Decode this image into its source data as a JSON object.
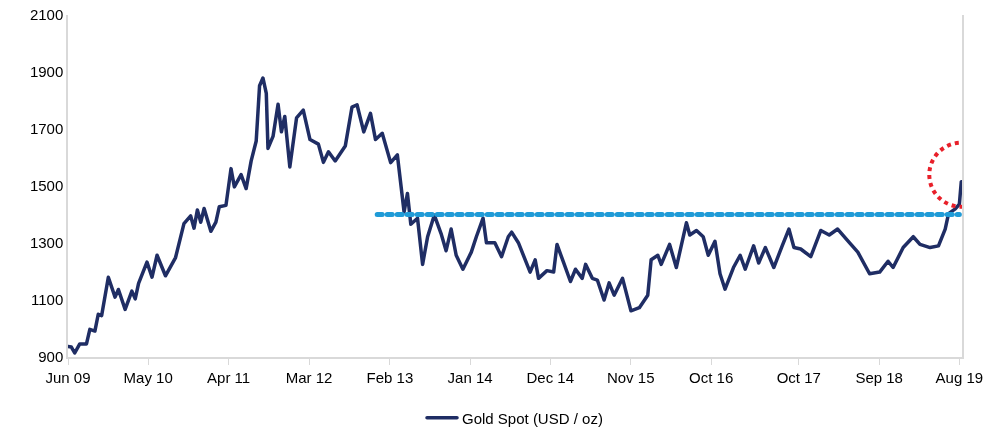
{
  "chart_data": {
    "type": "line",
    "legend": "bottom",
    "grid": false,
    "marker": "none",
    "xlim": [
      "2009-06-01",
      "2019-08-12"
    ],
    "ylim": [
      900,
      2100
    ],
    "xticks": [
      {
        "value": "2009-06-01",
        "label": "Jun 09"
      },
      {
        "value": "2010-05-01",
        "label": "May 10"
      },
      {
        "value": "2011-04-01",
        "label": "Apr 11"
      },
      {
        "value": "2012-03-01",
        "label": "Mar 12"
      },
      {
        "value": "2013-02-01",
        "label": "Feb 13"
      },
      {
        "value": "2014-01-01",
        "label": "Jan 14"
      },
      {
        "value": "2014-12-01",
        "label": "Dec 14"
      },
      {
        "value": "2015-11-01",
        "label": "Nov 15"
      },
      {
        "value": "2016-10-01",
        "label": "Oct 16"
      },
      {
        "value": "2017-10-01",
        "label": "Oct 17"
      },
      {
        "value": "2018-09-01",
        "label": "Sep 18"
      },
      {
        "value": "2019-08-01",
        "label": "Aug 19"
      }
    ],
    "yticks": [
      900,
      1100,
      1300,
      1500,
      1700,
      1900,
      2100
    ],
    "series": [
      {
        "name": "Gold Spot (USD / oz)",
        "color": "#1f2d64",
        "line_style": "solid",
        "x": [
          "2009-06-01",
          "2009-06-15",
          "2009-06-29",
          "2009-07-20",
          "2009-08-17",
          "2009-08-31",
          "2009-09-21",
          "2009-10-05",
          "2009-10-19",
          "2009-11-16",
          "2009-12-14",
          "2009-12-28",
          "2010-01-25",
          "2010-02-22",
          "2010-03-08",
          "2010-03-22",
          "2010-04-26",
          "2010-05-17",
          "2010-06-07",
          "2010-07-12",
          "2010-08-23",
          "2010-09-27",
          "2010-10-25",
          "2010-11-08",
          "2010-11-22",
          "2010-12-06",
          "2010-12-20",
          "2011-01-17",
          "2011-02-07",
          "2011-02-21",
          "2011-03-21",
          "2011-04-11",
          "2011-04-25",
          "2011-05-23",
          "2011-06-13",
          "2011-07-04",
          "2011-07-25",
          "2011-08-08",
          "2011-08-22",
          "2011-09-05",
          "2011-09-12",
          "2011-10-03",
          "2011-10-24",
          "2011-11-07",
          "2011-11-21",
          "2011-12-12",
          "2012-01-09",
          "2012-02-06",
          "2012-03-05",
          "2012-04-09",
          "2012-04-30",
          "2012-05-21",
          "2012-06-18",
          "2012-07-30",
          "2012-08-27",
          "2012-09-17",
          "2012-10-15",
          "2012-11-12",
          "2012-12-03",
          "2012-12-31",
          "2013-02-04",
          "2013-03-04",
          "2013-04-01",
          "2013-04-15",
          "2013-04-29",
          "2013-05-27",
          "2013-06-17",
          "2013-07-08",
          "2013-08-05",
          "2013-09-02",
          "2013-09-23",
          "2013-10-14",
          "2013-11-04",
          "2013-12-02",
          "2014-01-06",
          "2014-01-27",
          "2014-02-24",
          "2014-03-10",
          "2014-04-14",
          "2014-05-12",
          "2014-06-09",
          "2014-06-23",
          "2014-07-21",
          "2014-09-08",
          "2014-09-29",
          "2014-10-13",
          "2014-11-17",
          "2014-12-15",
          "2014-12-29",
          "2015-01-26",
          "2015-02-23",
          "2015-03-16",
          "2015-04-13",
          "2015-04-27",
          "2015-05-25",
          "2015-06-15",
          "2015-07-13",
          "2015-08-03",
          "2015-08-24",
          "2015-09-28",
          "2015-11-02",
          "2015-12-07",
          "2016-01-11",
          "2016-01-25",
          "2016-02-22",
          "2016-03-07",
          "2016-04-11",
          "2016-05-09",
          "2016-06-20",
          "2016-07-04",
          "2016-08-01",
          "2016-08-29",
          "2016-09-19",
          "2016-10-17",
          "2016-11-07",
          "2016-11-28",
          "2017-01-02",
          "2017-01-30",
          "2017-02-20",
          "2017-03-27",
          "2017-04-17",
          "2017-05-15",
          "2017-06-19",
          "2017-07-24",
          "2017-08-21",
          "2017-09-11",
          "2017-10-09",
          "2017-11-20",
          "2018-01-01",
          "2018-02-05",
          "2018-03-12",
          "2018-04-30",
          "2018-06-04",
          "2018-07-23",
          "2018-09-03",
          "2018-10-08",
          "2018-10-29",
          "2018-12-10",
          "2019-01-21",
          "2019-02-18",
          "2019-04-01",
          "2019-05-06",
          "2019-06-03",
          "2019-06-17",
          "2019-07-15",
          "2019-08-01",
          "2019-08-09"
        ],
        "values": [
          937,
          935,
          914,
          946,
          946,
          997,
          991,
          1050,
          1045,
          1180,
          1110,
          1137,
          1067,
          1131,
          1104,
          1158,
          1233,
          1180,
          1257,
          1185,
          1249,
          1368,
          1395,
          1352,
          1416,
          1373,
          1421,
          1341,
          1373,
          1427,
          1432,
          1561,
          1497,
          1540,
          1491,
          1588,
          1658,
          1852,
          1879,
          1825,
          1632,
          1674,
          1787,
          1690,
          1744,
          1567,
          1739,
          1766,
          1663,
          1647,
          1583,
          1620,
          1588,
          1640,
          1777,
          1785,
          1690,
          1755,
          1663,
          1685,
          1582,
          1609,
          1409,
          1474,
          1366,
          1387,
          1225,
          1322,
          1398,
          1333,
          1273,
          1349,
          1257,
          1208,
          1268,
          1322,
          1387,
          1301,
          1301,
          1252,
          1322,
          1338,
          1301,
          1198,
          1241,
          1176,
          1203,
          1198,
          1295,
          1230,
          1165,
          1208,
          1176,
          1225,
          1176,
          1170,
          1100,
          1160,
          1117,
          1176,
          1062,
          1073,
          1117,
          1241,
          1257,
          1225,
          1295,
          1214,
          1371,
          1328,
          1344,
          1322,
          1257,
          1306,
          1192,
          1138,
          1214,
          1257,
          1208,
          1290,
          1230,
          1284,
          1214,
          1290,
          1349,
          1284,
          1279,
          1252,
          1344,
          1328,
          1349,
          1301,
          1268,
          1192,
          1198,
          1236,
          1214,
          1284,
          1322,
          1295,
          1284,
          1290,
          1349,
          1403,
          1420,
          1436,
          1515
        ]
      },
      {
        "color": "#1f9bd7",
        "line_style": "dotted",
        "x": [
          "2012-12-10",
          "2019-08-01"
        ],
        "values": [
          1400,
          1400
        ]
      }
    ]
  }
}
